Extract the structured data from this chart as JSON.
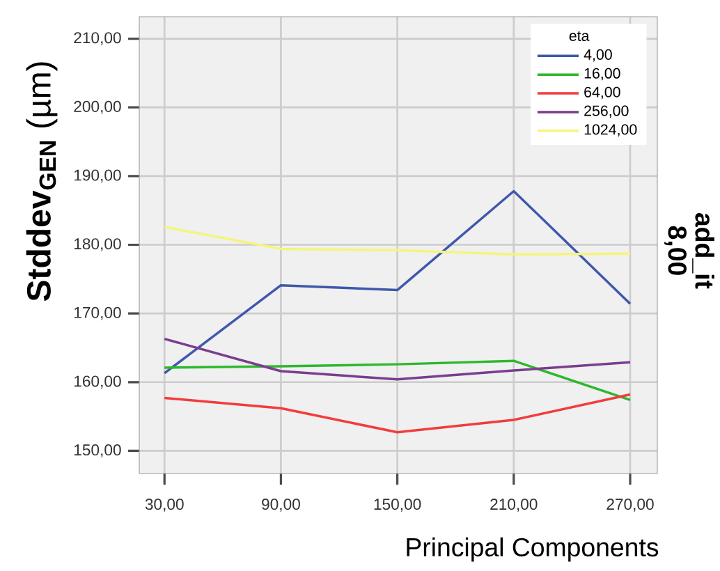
{
  "chart_data": {
    "type": "line",
    "xlabel": "Principal Components",
    "ylabel": "**Stddev$_{GEN}$** (µm)",
    "legend_title": "eta",
    "annotations": [
      "add_it",
      "8,00"
    ],
    "x": [
      30,
      90,
      150,
      210,
      270
    ],
    "xlim": [
      17,
      284
    ],
    "ylim": [
      146.7,
      213.2
    ],
    "xticks": [
      {
        "value": 30,
        "label": "30,00"
      },
      {
        "value": 90,
        "label": "90,00"
      },
      {
        "value": 150,
        "label": "150,00"
      },
      {
        "value": 210,
        "label": "210,00"
      },
      {
        "value": 270,
        "label": "270,00"
      }
    ],
    "yticks": [
      {
        "value": 150,
        "label": "150,00"
      },
      {
        "value": 160,
        "label": "160,00"
      },
      {
        "value": 170,
        "label": "170,00"
      },
      {
        "value": 180,
        "label": "180,00"
      },
      {
        "value": 190,
        "label": "190,00"
      },
      {
        "value": 200,
        "label": "200,00"
      },
      {
        "value": 210,
        "label": "210,00"
      }
    ],
    "grid": true,
    "legend": "top right",
    "marker": "none",
    "line_style": "solid",
    "series": [
      {
        "name": "4,00",
        "color": "#3e58ac",
        "values": [
          161.3,
          174.1,
          173.4,
          187.8,
          171.4
        ]
      },
      {
        "name": "16,00",
        "color": "#2db82d",
        "values": [
          162.1,
          162.3,
          162.6,
          163.1,
          157.4
        ]
      },
      {
        "name": "64,00",
        "color": "#f23c3c",
        "values": [
          157.7,
          156.2,
          152.7,
          154.5,
          158.2
        ]
      },
      {
        "name": "256,00",
        "color": "#7b3d8f",
        "values": [
          166.3,
          161.6,
          160.4,
          161.7,
          162.9
        ]
      },
      {
        "name": "1024,00",
        "color": "#f5f57a",
        "values": [
          182.6,
          179.4,
          179.2,
          178.6,
          178.7
        ]
      }
    ]
  }
}
